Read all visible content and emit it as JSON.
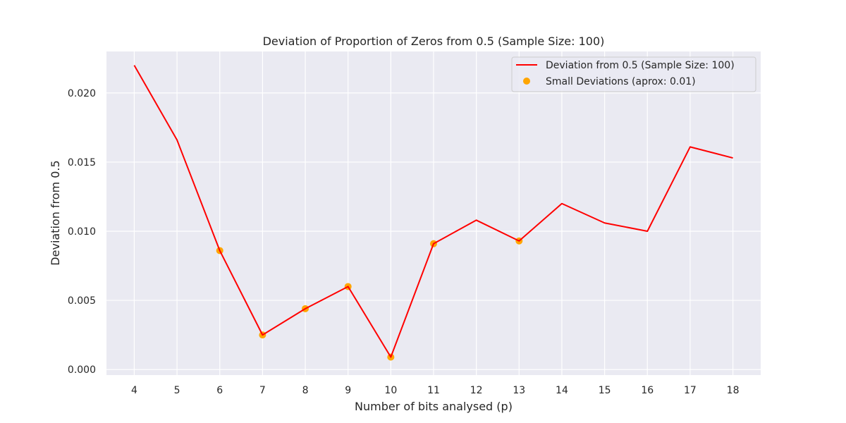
{
  "chart_data": {
    "type": "line",
    "title": "Deviation of Proportion of Zeros from 0.5 (Sample Size: 100)",
    "xlabel": "Number of bits analysed (p)",
    "ylabel": "Deviation from 0.5",
    "x": [
      4,
      5,
      6,
      7,
      8,
      9,
      10,
      11,
      12,
      13,
      14,
      15,
      16,
      17,
      18
    ],
    "x_ticks": [
      "4",
      "5",
      "6",
      "7",
      "8",
      "9",
      "10",
      "11",
      "12",
      "13",
      "14",
      "15",
      "16",
      "17",
      "18"
    ],
    "y_ticks": [
      "0.000",
      "0.005",
      "0.010",
      "0.015",
      "0.020"
    ],
    "ylim": [
      -0.0004,
      0.023
    ],
    "xlim": [
      3.35,
      18.65
    ],
    "grid": true,
    "legend_position": "top-right",
    "series": [
      {
        "name": "Deviation from 0.5 (Sample Size: 100)",
        "kind": "line",
        "color": "#ff0000",
        "values": [
          0.022,
          0.0166,
          0.0086,
          0.0025,
          0.0044,
          0.006,
          0.0009,
          0.0091,
          0.0108,
          0.0093,
          0.012,
          0.0106,
          0.01,
          0.0161,
          0.0153
        ]
      },
      {
        "name": "Small Deviations (aprox: 0.01)",
        "kind": "scatter",
        "color": "#ffa500",
        "x": [
          6,
          7,
          8,
          9,
          10,
          11,
          13
        ],
        "values": [
          0.0086,
          0.0025,
          0.0044,
          0.006,
          0.0009,
          0.0091,
          0.0093
        ]
      }
    ],
    "colors": {
      "plot_background": "#eaeaf2",
      "grid": "#ffffff",
      "text": "#262626"
    }
  }
}
